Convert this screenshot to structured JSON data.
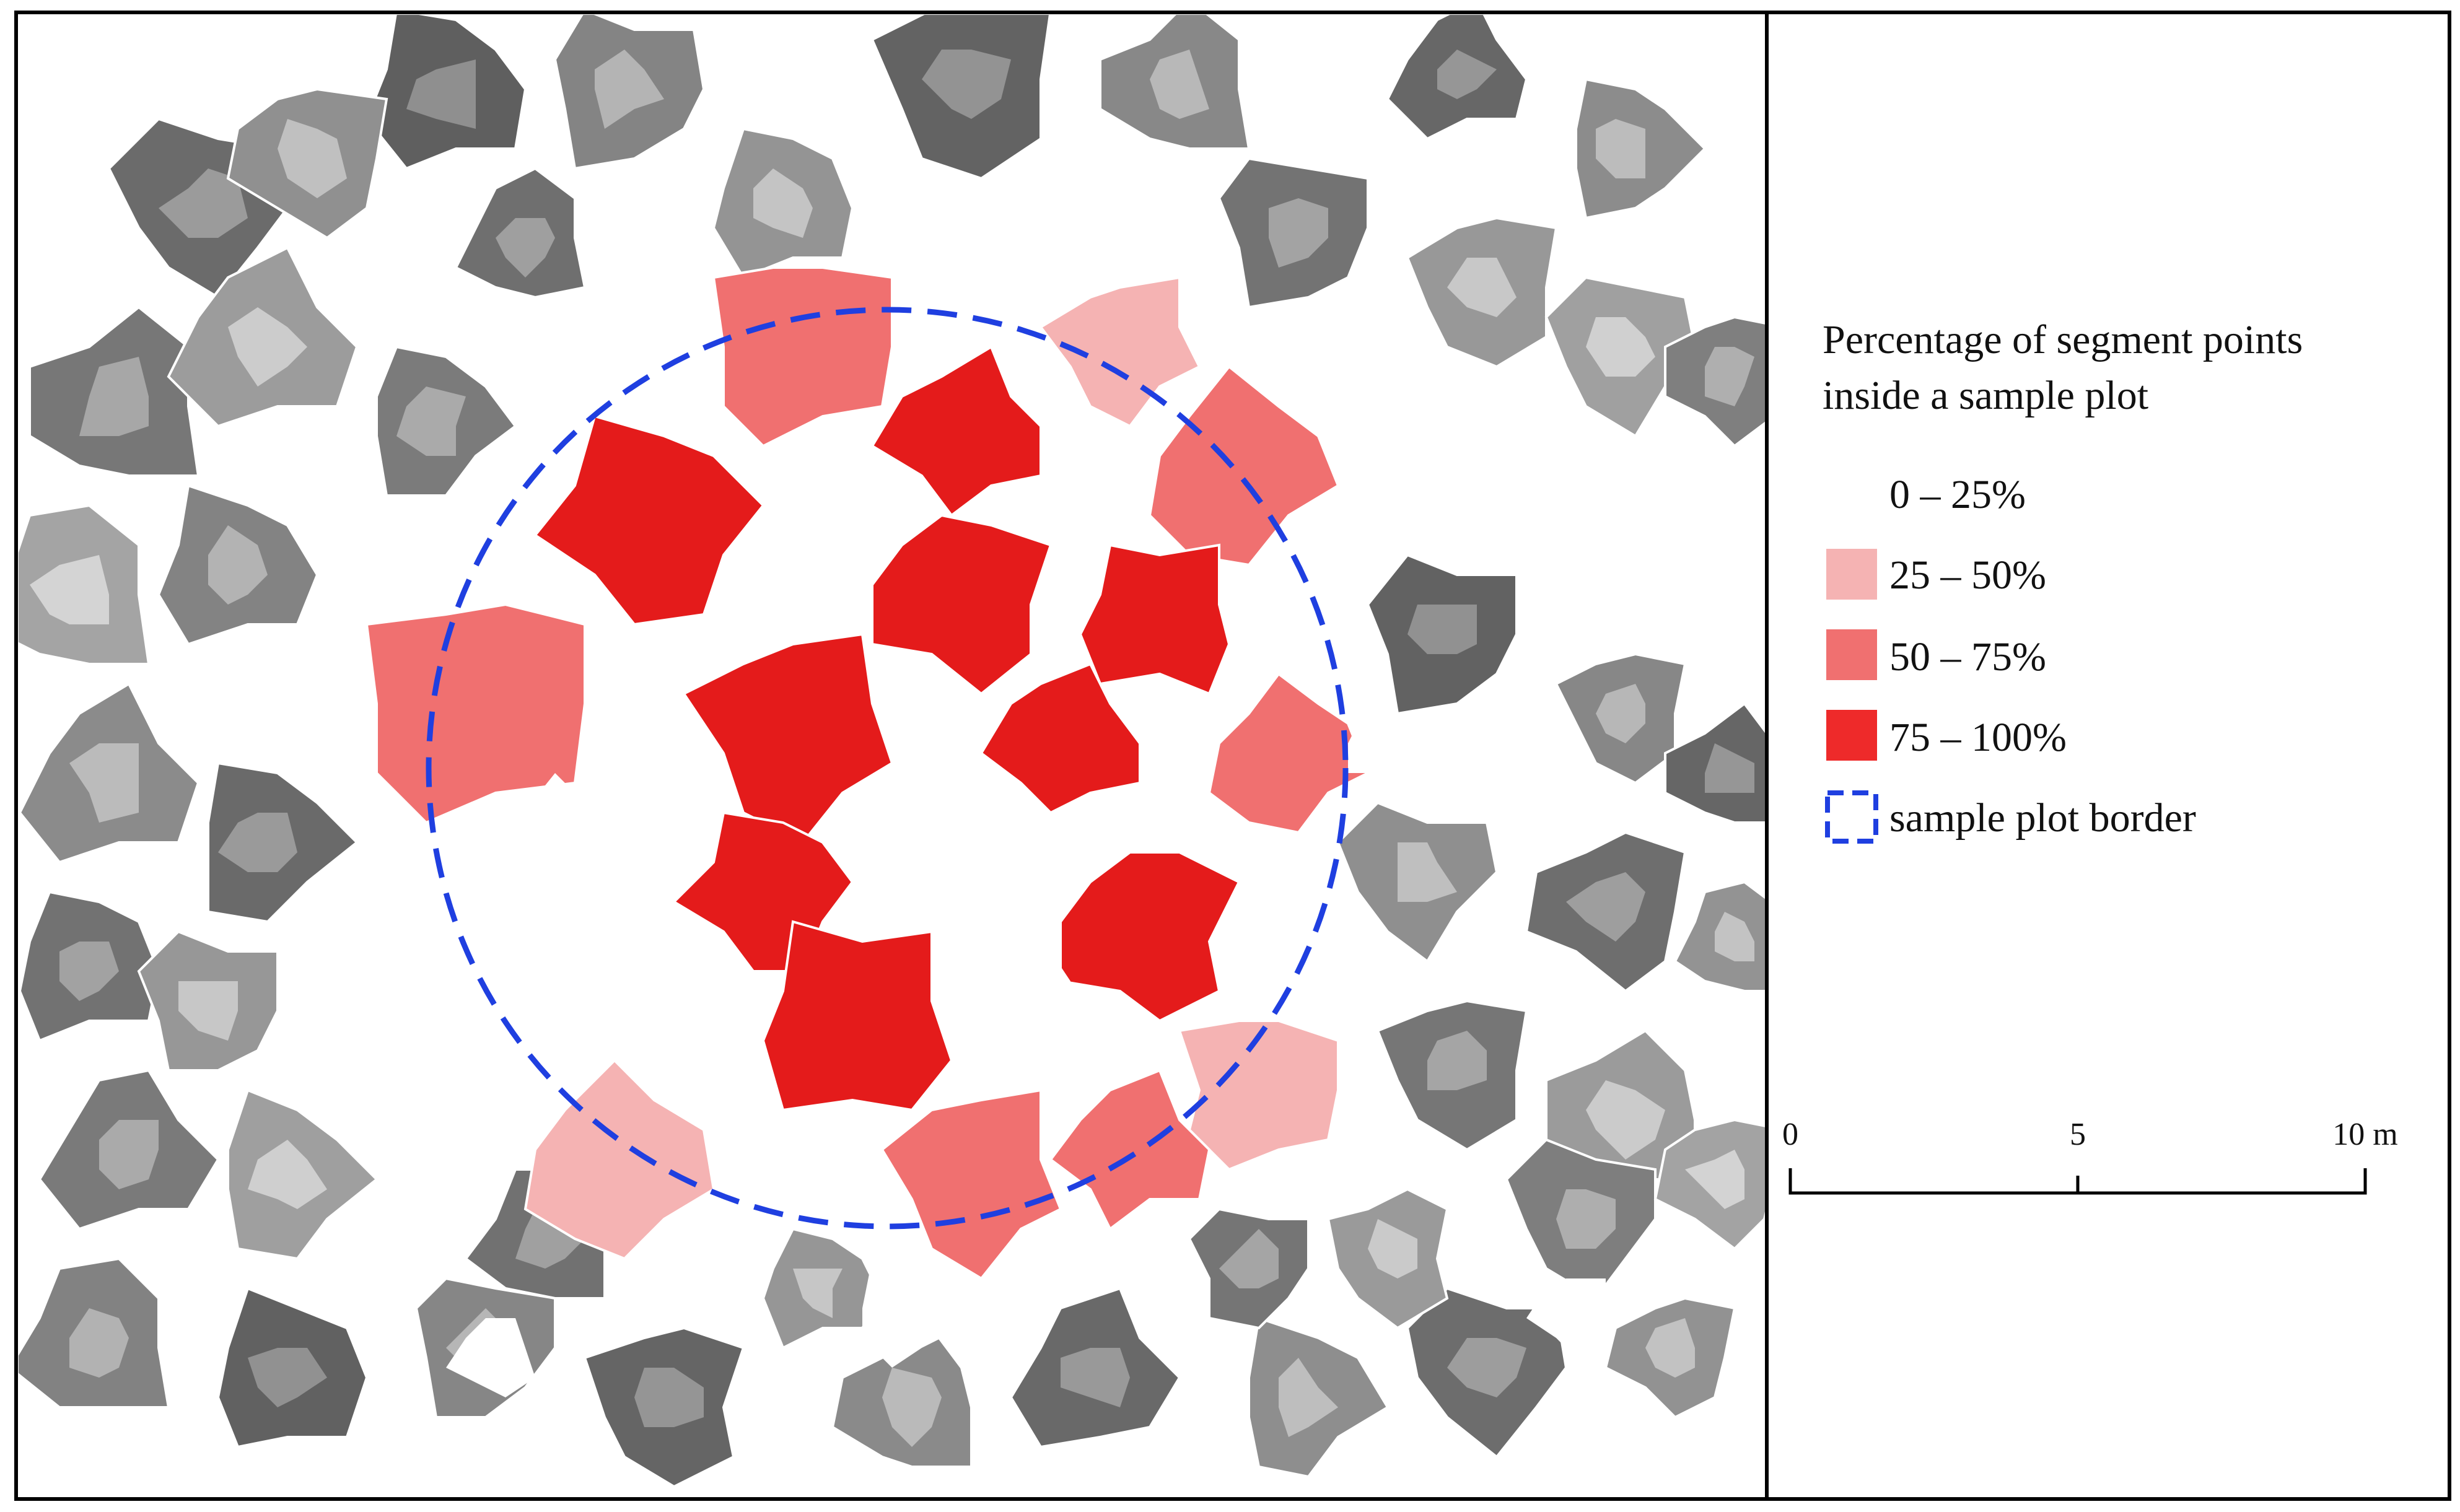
{
  "legend": {
    "title_line1": "Percentage of segment points",
    "title_line2": "inside a sample plot",
    "classes": [
      {
        "label": "0 – 25%",
        "color": "#ffffff"
      },
      {
        "label": "25 – 50%",
        "color": "#f5b3b3"
      },
      {
        "label": "50 – 75%",
        "color": "#f07070"
      },
      {
        "label": "75 – 100%",
        "color": "#ee2a2a"
      }
    ],
    "plot_border": {
      "label": "sample plot border",
      "color": "#1f3fe0",
      "style": "dashed"
    }
  },
  "scale_bar": {
    "labels": [
      "0",
      "5",
      "10 m"
    ],
    "unit": "m",
    "length": 10
  },
  "colors": {
    "frame": "#000000",
    "segment_outline": "#ffffff",
    "plot_border": "#1f3fe0",
    "highest_class_fill": "#e41b1b"
  },
  "icons": {
    "legend_swatch": "square-swatch-icon",
    "plot_border_swatch": "dashed-square-icon"
  }
}
